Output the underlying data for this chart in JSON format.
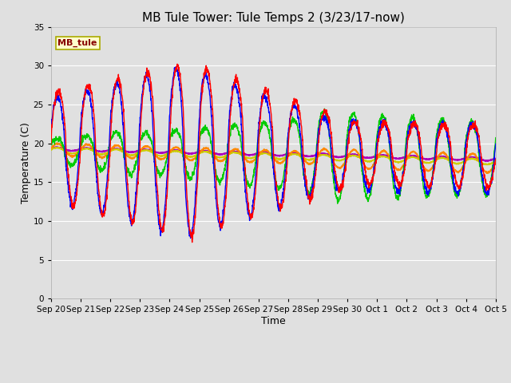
{
  "title": "MB Tule Tower: Tule Temps 2 (3/23/17-now)",
  "xlabel": "Time",
  "ylabel": "Temperature (C)",
  "ylim": [
    0,
    35
  ],
  "yticks": [
    0,
    5,
    10,
    15,
    20,
    25,
    30,
    35
  ],
  "fig_bg": "#e0e0e0",
  "plot_bg": "#e0e0e0",
  "series_colors": {
    "Tul2_Tw+2": "#ff0000",
    "Tul2_Ts-2": "#0000ff",
    "Tul2_Ts-4": "#00cc00",
    "Tul2_Ts-8": "#ff8800",
    "Tul2_Ts-16": "#cccc00",
    "Tul2_Ts-32": "#aa00bb"
  },
  "x_tick_labels": [
    "Sep 20",
    "Sep 21",
    "Sep 22",
    "Sep 23",
    "Sep 24",
    "Sep 25",
    "Sep 26",
    "Sep 27",
    "Sep 28",
    "Sep 29",
    "Sep 30",
    "Oct 1",
    "Oct 2",
    "Oct 3",
    "Oct 4",
    "Oct 5"
  ],
  "title_fontsize": 11,
  "axis_label_fontsize": 9,
  "tick_fontsize": 7.5
}
